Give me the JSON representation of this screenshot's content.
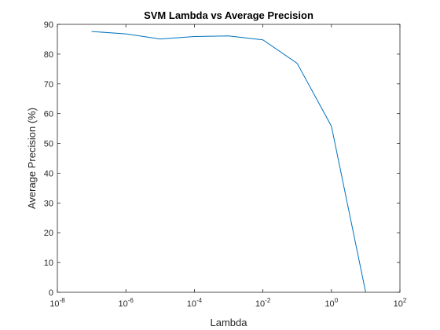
{
  "chart_data": {
    "type": "line",
    "title": "SVM Lambda vs Average Precision",
    "xlabel": "Lambda",
    "ylabel": "Average Precision (%)",
    "xscale": "log",
    "xlim": [
      1e-08,
      100
    ],
    "ylim": [
      0,
      90
    ],
    "grid": false,
    "x_ticks": [
      {
        "exp": -8
      },
      {
        "exp": -6
      },
      {
        "exp": -4
      },
      {
        "exp": -2
      },
      {
        "exp": 0
      },
      {
        "exp": 2
      }
    ],
    "y_ticks": [
      0,
      10,
      20,
      30,
      40,
      50,
      60,
      70,
      80,
      90
    ],
    "series": [
      {
        "x": [
          1e-07,
          1e-06,
          1e-05,
          0.0001,
          0.001,
          0.01,
          0.1,
          1,
          10
        ],
        "values": [
          87.6,
          86.8,
          85.1,
          85.9,
          86.1,
          84.8,
          76.9,
          55.8,
          0
        ],
        "color": "#0072BD"
      }
    ]
  }
}
